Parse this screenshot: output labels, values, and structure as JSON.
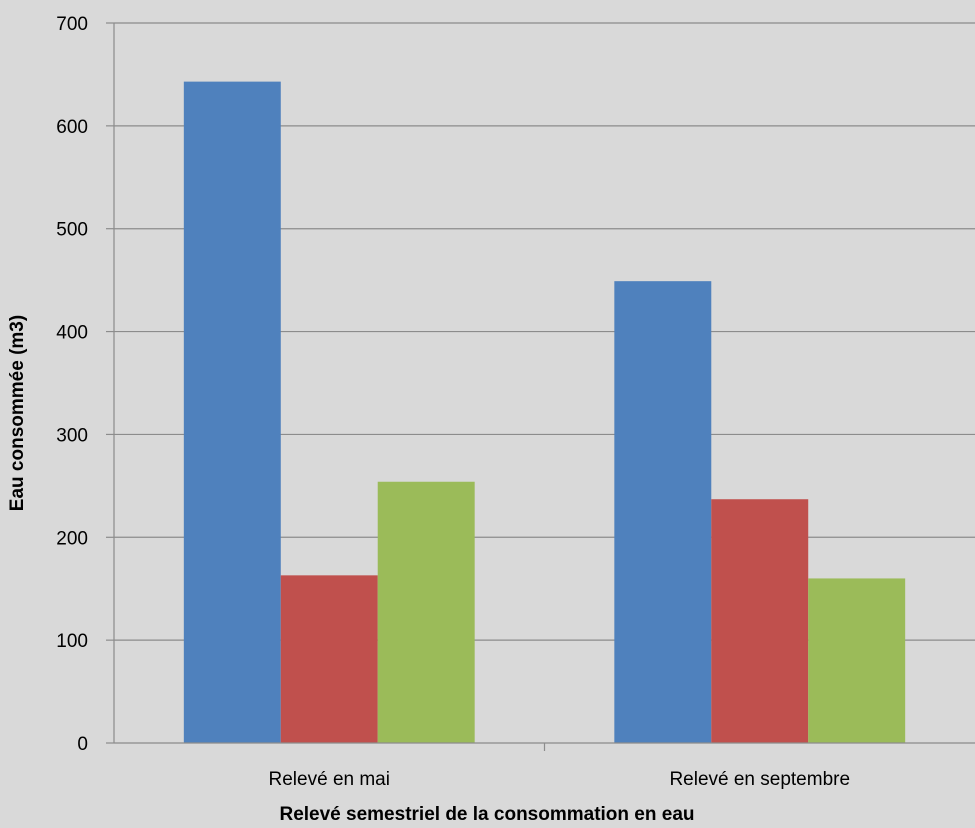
{
  "chart_data": {
    "type": "bar",
    "title": "",
    "xlabel": "Relevé semestriel de la consommation en eau",
    "ylabel": "Eau consommée (m3)",
    "categories": [
      "Relevé en mai",
      "Relevé en septembre"
    ],
    "series": [
      {
        "values": [
          643,
          449
        ],
        "color": "#4f81bd"
      },
      {
        "values": [
          163,
          237
        ],
        "color": "#c0504d"
      },
      {
        "values": [
          254,
          160
        ],
        "color": "#9bbb59"
      }
    ],
    "ylim": [
      0,
      700
    ],
    "yticks": [
      0,
      100,
      200,
      300,
      400,
      500,
      600,
      700
    ],
    "grid": true,
    "legend": "none"
  }
}
